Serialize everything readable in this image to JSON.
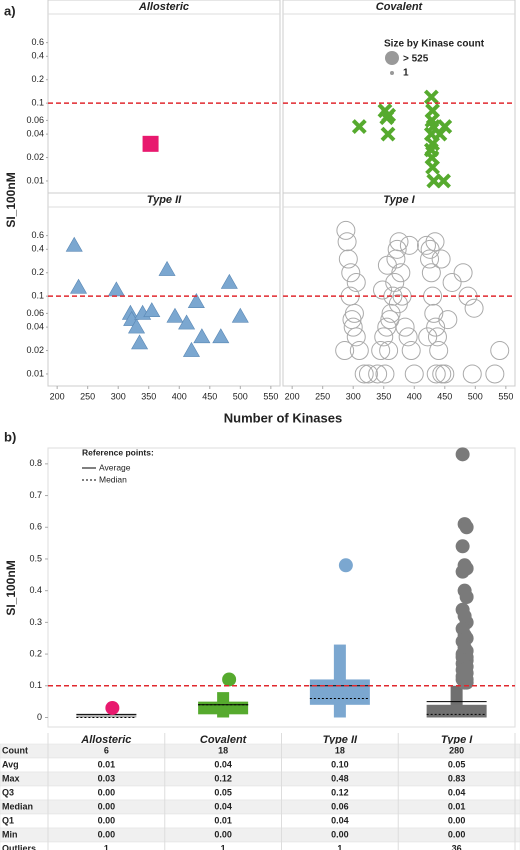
{
  "chart_data": [
    {
      "type": "scatter",
      "panel_label": "a)",
      "y_label": "SI_100nM",
      "x_label": "Number of Kinases",
      "log_y": true,
      "xlim": [
        185,
        565
      ],
      "xticks": [
        200,
        250,
        300,
        350,
        400,
        450,
        500,
        550
      ],
      "ylim": [
        0.007,
        1.4
      ],
      "yticks": [
        0.6,
        0.4,
        0.2,
        0.1,
        0.06,
        0.04,
        0.02,
        0.01
      ],
      "reference_line": 0.1,
      "reference_color": "#e0282e",
      "size_legend": {
        "title": "Size by Kinase count",
        "labels": [
          "> 525",
          "1"
        ]
      },
      "facets": [
        {
          "title": "Allosteric",
          "marker": "square",
          "color": "#e8196e",
          "x": [
            353
          ],
          "y": [
            0.03
          ]
        },
        {
          "title": "Covalent",
          "marker": "x",
          "color": "#56aa2e",
          "x": [
            310,
            352,
            358,
            355,
            357,
            428,
            430,
            429,
            431,
            428,
            430,
            429,
            430,
            428,
            442,
            450,
            432,
            448
          ],
          "y": [
            0.05,
            0.08,
            0.07,
            0.065,
            0.04,
            0.12,
            0.08,
            0.06,
            0.05,
            0.04,
            0.03,
            0.02,
            0.015,
            0.025,
            0.04,
            0.05,
            0.01,
            0.01
          ]
        },
        {
          "title": "Type II",
          "marker": "triangle",
          "color": "#7ba7d0",
          "x": [
            228,
            235,
            297,
            320,
            322,
            330,
            340,
            335,
            355,
            380,
            393,
            412,
            428,
            420,
            437,
            468,
            482,
            500
          ],
          "y": [
            0.45,
            0.13,
            0.12,
            0.06,
            0.05,
            0.04,
            0.06,
            0.025,
            0.065,
            0.22,
            0.055,
            0.045,
            0.085,
            0.02,
            0.03,
            0.03,
            0.15,
            0.055
          ]
        },
        {
          "title": "Type I",
          "marker": "circle",
          "color": "#aaaaaa",
          "x": [
            290,
            292,
            295,
            298,
            300,
            305,
            310,
            318,
            325,
            288,
            296,
            302,
            340,
            345,
            350,
            355,
            360,
            362,
            365,
            368,
            370,
            372,
            375,
            378,
            380,
            385,
            390,
            395,
            400,
            352,
            358,
            420,
            425,
            428,
            430,
            432,
            435,
            438,
            440,
            445,
            450,
            455,
            462,
            426,
            434,
            480,
            488,
            495,
            540,
            305,
            348,
            356,
            374,
            392,
            422,
            436,
            444,
            498,
            532,
            286
          ],
          "y": [
            0.5,
            0.3,
            0.1,
            0.05,
            0.04,
            0.03,
            0.02,
            0.01,
            0.01,
            0.7,
            0.2,
            0.06,
            0.01,
            0.02,
            0.03,
            0.04,
            0.05,
            0.06,
            0.1,
            0.15,
            0.3,
            0.4,
            0.5,
            0.2,
            0.1,
            0.04,
            0.03,
            0.02,
            0.01,
            0.01,
            0.02,
            0.45,
            0.3,
            0.2,
            0.1,
            0.06,
            0.04,
            0.03,
            0.02,
            0.01,
            0.01,
            0.05,
            0.15,
            0.4,
            0.5,
            0.2,
            0.1,
            0.01,
            0.02,
            0.15,
            0.12,
            0.25,
            0.08,
            0.45,
            0.03,
            0.01,
            0.3,
            0.07,
            0.01,
            0.02
          ]
        }
      ]
    },
    {
      "type": "box",
      "panel_label": "b)",
      "y_label": "SI_100nM",
      "ylim": [
        -0.03,
        0.85
      ],
      "yticks": [
        0,
        0.1,
        0.2,
        0.3,
        0.4,
        0.5,
        0.6,
        0.7,
        0.8
      ],
      "reference_line": 0.1,
      "reference_color": "#e0282e",
      "reference_legend": {
        "title": "Reference points:",
        "average": "Average",
        "median": "Median"
      },
      "categories": [
        "Allosteric",
        "Covalent",
        "Type II",
        "Type I"
      ],
      "box_colors": [
        "#b0b0b0",
        "#56aa2e",
        "#7ba7d0",
        "#707070"
      ],
      "point_colors": [
        "#e8196e",
        "#56aa2e",
        "#7ba7d0",
        "#7a7a7a"
      ],
      "min": [
        0,
        0,
        0,
        0
      ],
      "q1": [
        0,
        0.01,
        0.04,
        0
      ],
      "median": [
        0,
        0.04,
        0.06,
        0.01
      ],
      "q3": [
        0,
        0.05,
        0.12,
        0.04
      ],
      "whisker_high": [
        0,
        0.08,
        0.23,
        0.1
      ],
      "mean": [
        0.01,
        0.04,
        0.1,
        0.05
      ],
      "outliers": [
        [
          0.03
        ],
        [
          0.12
        ],
        [
          0.48
        ],
        [
          0.83,
          0.61,
          0.6,
          0.54,
          0.48,
          0.47,
          0.46,
          0.4,
          0.38,
          0.34,
          0.32,
          0.3,
          0.28,
          0.26,
          0.25,
          0.24,
          0.22,
          0.21,
          0.2,
          0.2,
          0.19,
          0.19,
          0.18,
          0.18,
          0.17,
          0.17,
          0.16,
          0.15,
          0.15,
          0.14,
          0.13,
          0.13,
          0.12,
          0.12,
          0.11,
          0.11
        ]
      ]
    }
  ],
  "table": {
    "row_labels": [
      "Count",
      "Avg",
      "Max",
      "Q3",
      "Median",
      "Q1",
      "Min",
      "Outliers"
    ],
    "rows": [
      [
        "6",
        "18",
        "18",
        "280"
      ],
      [
        "0.01",
        "0.04",
        "0.10",
        "0.05"
      ],
      [
        "0.03",
        "0.12",
        "0.48",
        "0.83"
      ],
      [
        "0.00",
        "0.05",
        "0.12",
        "0.04"
      ],
      [
        "0.00",
        "0.04",
        "0.06",
        "0.01"
      ],
      [
        "0.00",
        "0.01",
        "0.04",
        "0.00"
      ],
      [
        "0.00",
        "0.00",
        "0.00",
        "0.00"
      ],
      [
        "1",
        "1",
        "1",
        "36"
      ]
    ]
  }
}
